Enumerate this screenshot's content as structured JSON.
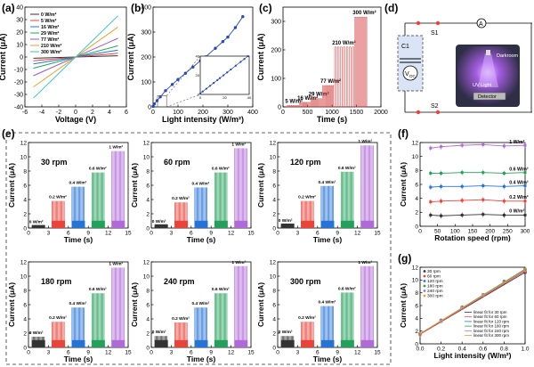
{
  "panels": {
    "a": "(a)",
    "b": "(b)",
    "c": "(c)",
    "d": "(d)",
    "e": "(e)",
    "f": "(f)",
    "g": "(g)"
  },
  "colors": {
    "red": "#e8443a",
    "blue": "#2673d6",
    "green": "#23a05a",
    "purple": "#b06ad8",
    "black": "#333333",
    "navy": "#2546b5"
  },
  "chart_data": [
    {
      "panel": "a",
      "type": "line",
      "xlabel": "Voltage (V)",
      "ylabel": "Current (μA)",
      "xlim": [
        -6,
        6
      ],
      "ylim": [
        -40,
        40
      ],
      "xticks": [
        -6,
        -4,
        -2,
        0,
        2,
        4,
        6
      ],
      "yticks": [
        -40,
        -30,
        -20,
        -10,
        0,
        10,
        20,
        30,
        40
      ],
      "x": [
        -5,
        5
      ],
      "series": [
        {
          "name": "0 W/m²",
          "values": [
            -1.0,
            1.0
          ],
          "color": "#333333"
        },
        {
          "name": "5 W/m²",
          "values": [
            -3.0,
            3.0
          ],
          "color": "#e8443a"
        },
        {
          "name": "16 W/m²",
          "values": [
            -5.5,
            5.5
          ],
          "color": "#2673d6"
        },
        {
          "name": "29 W/m²",
          "values": [
            -9.0,
            9.0
          ],
          "color": "#23a05a"
        },
        {
          "name": "77 W/m²",
          "values": [
            -15.0,
            15.0
          ],
          "color": "#9b59b6"
        },
        {
          "name": "210 W/m²",
          "values": [
            -24.0,
            24.0
          ],
          "color": "#e0a030"
        },
        {
          "name": "300 W/m²",
          "values": [
            -33.0,
            33.0
          ],
          "color": "#3cc0c0"
        }
      ]
    },
    {
      "panel": "b",
      "type": "scatter",
      "xlabel": "Light intensity (W/m²)",
      "ylabel": "Current (μA)",
      "xlim": [
        0,
        400
      ],
      "ylim": [
        0,
        400
      ],
      "xticks": [
        0,
        100,
        200,
        300,
        400
      ],
      "yticks": [
        0,
        100,
        200,
        300,
        400
      ],
      "x": [
        0,
        5,
        16,
        29,
        50,
        77,
        100,
        130,
        160,
        190,
        210,
        250,
        280,
        300,
        330,
        360
      ],
      "series": [
        {
          "values": [
            2,
            12,
            25,
            40,
            65,
            90,
            110,
            135,
            160,
            185,
            200,
            235,
            262,
            280,
            318,
            362
          ]
        }
      ],
      "inset": {
        "xlim": [
          0,
          40
        ],
        "ylim": [
          0,
          40
        ],
        "xticks": [
          0,
          20,
          40
        ],
        "yticks": [
          0,
          20,
          40
        ],
        "x": [
          0,
          2,
          5,
          8,
          11,
          14,
          16,
          19,
          22,
          25,
          29,
          33,
          36,
          39
        ],
        "values": [
          1,
          3,
          6,
          9,
          12,
          15,
          17,
          20,
          23,
          26,
          30,
          34,
          37,
          40
        ]
      }
    },
    {
      "panel": "c",
      "type": "line",
      "xlabel": "Time (s)",
      "ylabel": "Current (μA)",
      "xlim": [
        0,
        2000
      ],
      "ylim": [
        0,
        350
      ],
      "xticks": [
        0,
        500,
        1000,
        1500,
        2000
      ],
      "yticks": [
        0,
        100,
        200,
        300
      ],
      "steps": [
        {
          "label": "5 W/m²",
          "start": 80,
          "end": 330,
          "value": 5
        },
        {
          "label": "16 W/m²",
          "start": 330,
          "end": 560,
          "value": 16
        },
        {
          "label": "29 W/m²",
          "start": 560,
          "end": 800,
          "value": 29
        },
        {
          "label": "77 W/m²",
          "start": 800,
          "end": 1040,
          "value": 75
        },
        {
          "label": "210 W/m²",
          "start": 1040,
          "end": 1460,
          "value": 210
        },
        {
          "label": "300 W/m²",
          "start": 1460,
          "end": 1720,
          "value": 315
        }
      ]
    },
    {
      "panel": "e",
      "type": "bar",
      "xlabel": "Time (s)",
      "ylabel": "Current (μA)",
      "xlim": [
        0,
        15
      ],
      "ylim": [
        0,
        12
      ],
      "xticks": [
        0,
        3,
        6,
        9,
        12,
        15
      ],
      "yticks": [
        0,
        2,
        4,
        6,
        8,
        10,
        12
      ],
      "intensities": [
        "0 W/m²",
        "0.2 W/m²",
        "0.4 W/m²",
        "0.6 W/m²",
        "1 W/m²"
      ],
      "subplots": [
        {
          "rpm": "30 rpm",
          "values": [
            0.3,
            3.8,
            5.8,
            7.8,
            10.8
          ]
        },
        {
          "rpm": "60 rpm",
          "values": [
            0.4,
            3.6,
            5.7,
            7.8,
            11.2
          ]
        },
        {
          "rpm": "120 rpm",
          "values": [
            0.5,
            3.8,
            5.9,
            7.9,
            11.6
          ]
        },
        {
          "rpm": "180 rpm",
          "values": [
            1.5,
            3.6,
            5.6,
            7.6,
            11.2
          ]
        },
        {
          "rpm": "240 rpm",
          "values": [
            1.6,
            3.5,
            5.6,
            7.6,
            11.4
          ]
        },
        {
          "rpm": "300 rpm",
          "values": [
            1.6,
            3.6,
            5.8,
            7.7,
            11.4
          ]
        }
      ]
    },
    {
      "panel": "f",
      "type": "line",
      "xlabel": "Rotation speed (rpm)",
      "ylabel": "Current (μA)",
      "xlim": [
        0,
        300
      ],
      "ylim": [
        0,
        12
      ],
      "xticks": [
        0,
        50,
        100,
        150,
        200,
        250,
        300
      ],
      "yticks": [
        0,
        2,
        4,
        6,
        8,
        10,
        12
      ],
      "x": [
        30,
        60,
        120,
        180,
        240,
        300
      ],
      "series": [
        {
          "name": "1 W/m²",
          "values": [
            11.2,
            11.4,
            11.6,
            11.7,
            11.5,
            11.6
          ],
          "color": "#b06ad8"
        },
        {
          "name": "0.6 W/m²",
          "values": [
            7.6,
            7.6,
            7.7,
            7.7,
            7.6,
            7.7
          ],
          "color": "#23a05a"
        },
        {
          "name": "0.4 W/m²",
          "values": [
            5.6,
            5.7,
            5.7,
            5.8,
            5.7,
            5.8
          ],
          "color": "#2673d6"
        },
        {
          "name": "0.2 W/m²",
          "values": [
            3.5,
            3.6,
            3.7,
            3.8,
            3.6,
            3.6
          ],
          "color": "#e8443a"
        },
        {
          "name": "0 W/m²",
          "values": [
            1.6,
            1.5,
            1.6,
            1.7,
            1.6,
            1.6
          ],
          "color": "#333333"
        }
      ]
    },
    {
      "panel": "g",
      "type": "scatter",
      "xlabel": "Light intensity (W/m²)",
      "ylabel": "Current (μA)",
      "xlim": [
        0,
        1
      ],
      "ylim": [
        0,
        12
      ],
      "xticks": [
        0.0,
        0.2,
        0.4,
        0.6,
        0.8,
        1.0
      ],
      "yticks": [
        0,
        2,
        4,
        6,
        8,
        10,
        12
      ],
      "x": [
        0,
        0.2,
        0.4,
        0.6,
        0.8,
        1.0
      ],
      "series": [
        {
          "name": "30 rpm",
          "values": [
            1.5,
            3.6,
            5.6,
            7.6,
            9.6,
            11.2
          ],
          "color": "#333333"
        },
        {
          "name": "60 rpm",
          "values": [
            1.5,
            3.6,
            5.6,
            7.6,
            9.7,
            11.4
          ],
          "color": "#e8443a"
        },
        {
          "name": "120 rpm",
          "values": [
            1.6,
            3.7,
            5.7,
            7.7,
            9.8,
            11.6
          ],
          "color": "#2673d6"
        },
        {
          "name": "180 rpm",
          "values": [
            1.6,
            3.6,
            5.6,
            7.7,
            9.7,
            11.7
          ],
          "color": "#23a05a"
        },
        {
          "name": "240 rpm",
          "values": [
            1.6,
            3.5,
            5.6,
            7.6,
            9.7,
            11.5
          ],
          "color": "#b06ad8"
        },
        {
          "name": "300 rpm",
          "values": [
            1.6,
            3.6,
            5.8,
            7.7,
            9.7,
            11.6
          ],
          "color": "#e0a030"
        }
      ],
      "fits": [
        "linear fit for   30 rpm",
        "linear fit for   60 rpm",
        "linear fit for 120 rpm",
        "linear fit for 180 rpm",
        "linear fit for 240 rpm",
        "linear fit for 300 rpm"
      ]
    }
  ],
  "schematic": {
    "s1": "S1",
    "s2": "S2",
    "c1": "C1",
    "voc": "V",
    "voc_sub": "OC",
    "ammeter": "A",
    "darkroom": "Darkroom",
    "uv_light": "UV Light",
    "detector": "Detector"
  }
}
